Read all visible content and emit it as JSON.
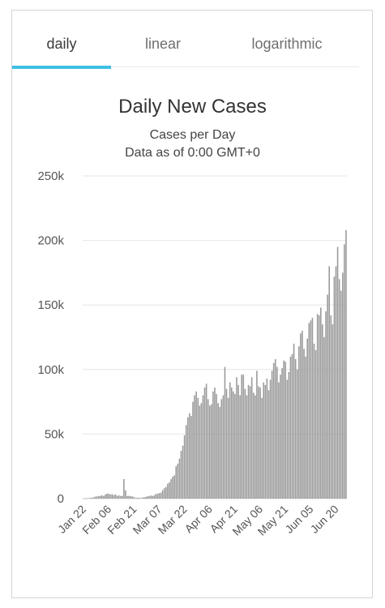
{
  "tabs": [
    {
      "label": "daily",
      "active": true
    },
    {
      "label": "linear",
      "active": false
    },
    {
      "label": "logarithmic",
      "active": false
    }
  ],
  "colors": {
    "bar": "#9a9a9a",
    "grid": "#e6e6e6",
    "tab_indicator": "#3fc0e4"
  },
  "chart_data": {
    "type": "bar",
    "title": "Daily New Cases",
    "subtitle": "Cases per Day",
    "subtitle2": "Data as of 0:00 GMT+0",
    "ylim": [
      0,
      250000
    ],
    "y_ticks": [
      {
        "value": 0,
        "label": "0"
      },
      {
        "value": 50000,
        "label": "50k"
      },
      {
        "value": 100000,
        "label": "100k"
      },
      {
        "value": 150000,
        "label": "150k"
      },
      {
        "value": 200000,
        "label": "200k"
      },
      {
        "value": 250000,
        "label": "250k"
      }
    ],
    "x_ticks": [
      {
        "index": 0,
        "label": "Jan 22"
      },
      {
        "index": 15,
        "label": "Feb 06"
      },
      {
        "index": 30,
        "label": "Feb 21"
      },
      {
        "index": 45,
        "label": "Mar 07"
      },
      {
        "index": 60,
        "label": "Mar 22"
      },
      {
        "index": 75,
        "label": "Apr 06"
      },
      {
        "index": 90,
        "label": "Apr 21"
      },
      {
        "index": 105,
        "label": "May 06"
      },
      {
        "index": 120,
        "label": "May 21"
      },
      {
        "index": 135,
        "label": "Jun 05"
      },
      {
        "index": 150,
        "label": "Jun 20"
      }
    ],
    "grid": true,
    "legend": false,
    "start_date": "Jan 22",
    "values": [
      100,
      150,
      100,
      300,
      500,
      700,
      1000,
      1500,
      1700,
      2000,
      2100,
      2600,
      2000,
      3200,
      3900,
      3700,
      3200,
      3400,
      2700,
      3200,
      2100,
      2500,
      2000,
      2100,
      15100,
      6400,
      2000,
      2100,
      1800,
      1700,
      1200,
      400,
      700,
      600,
      400,
      800,
      1000,
      1200,
      1800,
      1800,
      2400,
      2000,
      2500,
      3500,
      3800,
      4200,
      4500,
      6500,
      8000,
      9000,
      11500,
      12500,
      15000,
      17000,
      18000,
      25000,
      27000,
      31000,
      37000,
      41000,
      49000,
      57000,
      63000,
      66000,
      64000,
      75000,
      80000,
      83000,
      78000,
      72000,
      74000,
      80000,
      86000,
      89000,
      77000,
      72000,
      73000,
      83000,
      86000,
      81000,
      74000,
      71000,
      77000,
      80000,
      102000,
      85000,
      78000,
      90000,
      86000,
      83000,
      81000,
      94000,
      88000,
      80000,
      96000,
      96000,
      85000,
      80000,
      88000,
      87000,
      94000,
      82000,
      80000,
      99000,
      87000,
      86000,
      78000,
      90000,
      88000,
      93000,
      84000,
      92000,
      99000,
      105000,
      108000,
      102000,
      90000,
      96000,
      101000,
      107000,
      106000,
      92000,
      98000,
      110000,
      112000,
      120000,
      108000,
      100000,
      118000,
      128000,
      130000,
      116000,
      110000,
      124000,
      136000,
      138000,
      140000,
      120000,
      115000,
      143000,
      142000,
      148000,
      135000,
      125000,
      145000,
      158000,
      180000,
      142000,
      135000,
      172000,
      180000,
      195000,
      170000,
      161000,
      175000,
      197000,
      208000
    ]
  }
}
